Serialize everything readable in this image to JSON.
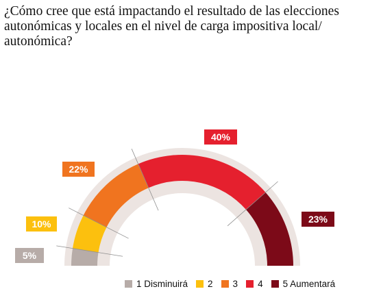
{
  "chart_data": {
    "type": "pie",
    "subtype": "semi-donut",
    "title": "¿Cómo cree que está impactando el resultado de las elecciones autonómicas y locales  en el nivel de carga impositiva local/ autonómica?",
    "categories": [
      "1 Disminuirá",
      "2",
      "3",
      "4",
      "5 Aumentará"
    ],
    "values": [
      5,
      10,
      22,
      40,
      23
    ],
    "labels": [
      "5%",
      "10%",
      "22%",
      "40%",
      "23%"
    ],
    "unit": "%",
    "legend_position": "bottom-right"
  },
  "colors": {
    "1 Disminuirá": "#b7aca8",
    "2": "#fcc00e",
    "3": "#f0741f",
    "4": "#e5202e",
    "5 Aumentará": "#7c0a18",
    "track": "#ece4e1",
    "label_text": "#ffffff"
  }
}
